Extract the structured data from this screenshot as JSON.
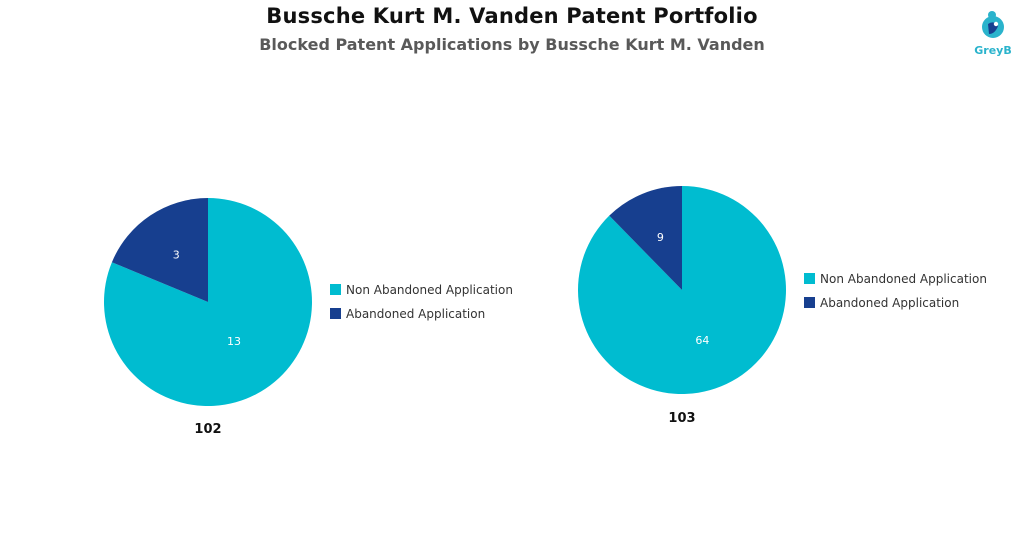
{
  "title": "Bussche Kurt M. Vanden Patent Portfolio",
  "subtitle": "Blocked Patent Applications by Bussche Kurt M. Vanden",
  "logo": {
    "text": "GreyB",
    "icon": "greyb-logo-icon",
    "color": "#2ab3cc"
  },
  "colors": {
    "non_abandoned": "#00bcd0",
    "abandoned": "#173f8f"
  },
  "chart_data": [
    {
      "type": "pie",
      "caption": "102",
      "slices": [
        {
          "label": "Non Abandoned Application",
          "value": 13
        },
        {
          "label": "Abandoned Application",
          "value": 3
        }
      ],
      "legend": [
        "Non Abandoned Application",
        "Abandoned Application"
      ],
      "legend_position": "right"
    },
    {
      "type": "pie",
      "caption": "103",
      "slices": [
        {
          "label": "Non Abandoned Application",
          "value": 64
        },
        {
          "label": "Abandoned Application",
          "value": 9
        }
      ],
      "legend": [
        "Non Abandoned Application",
        "Abandoned Application"
      ],
      "legend_position": "right"
    }
  ]
}
